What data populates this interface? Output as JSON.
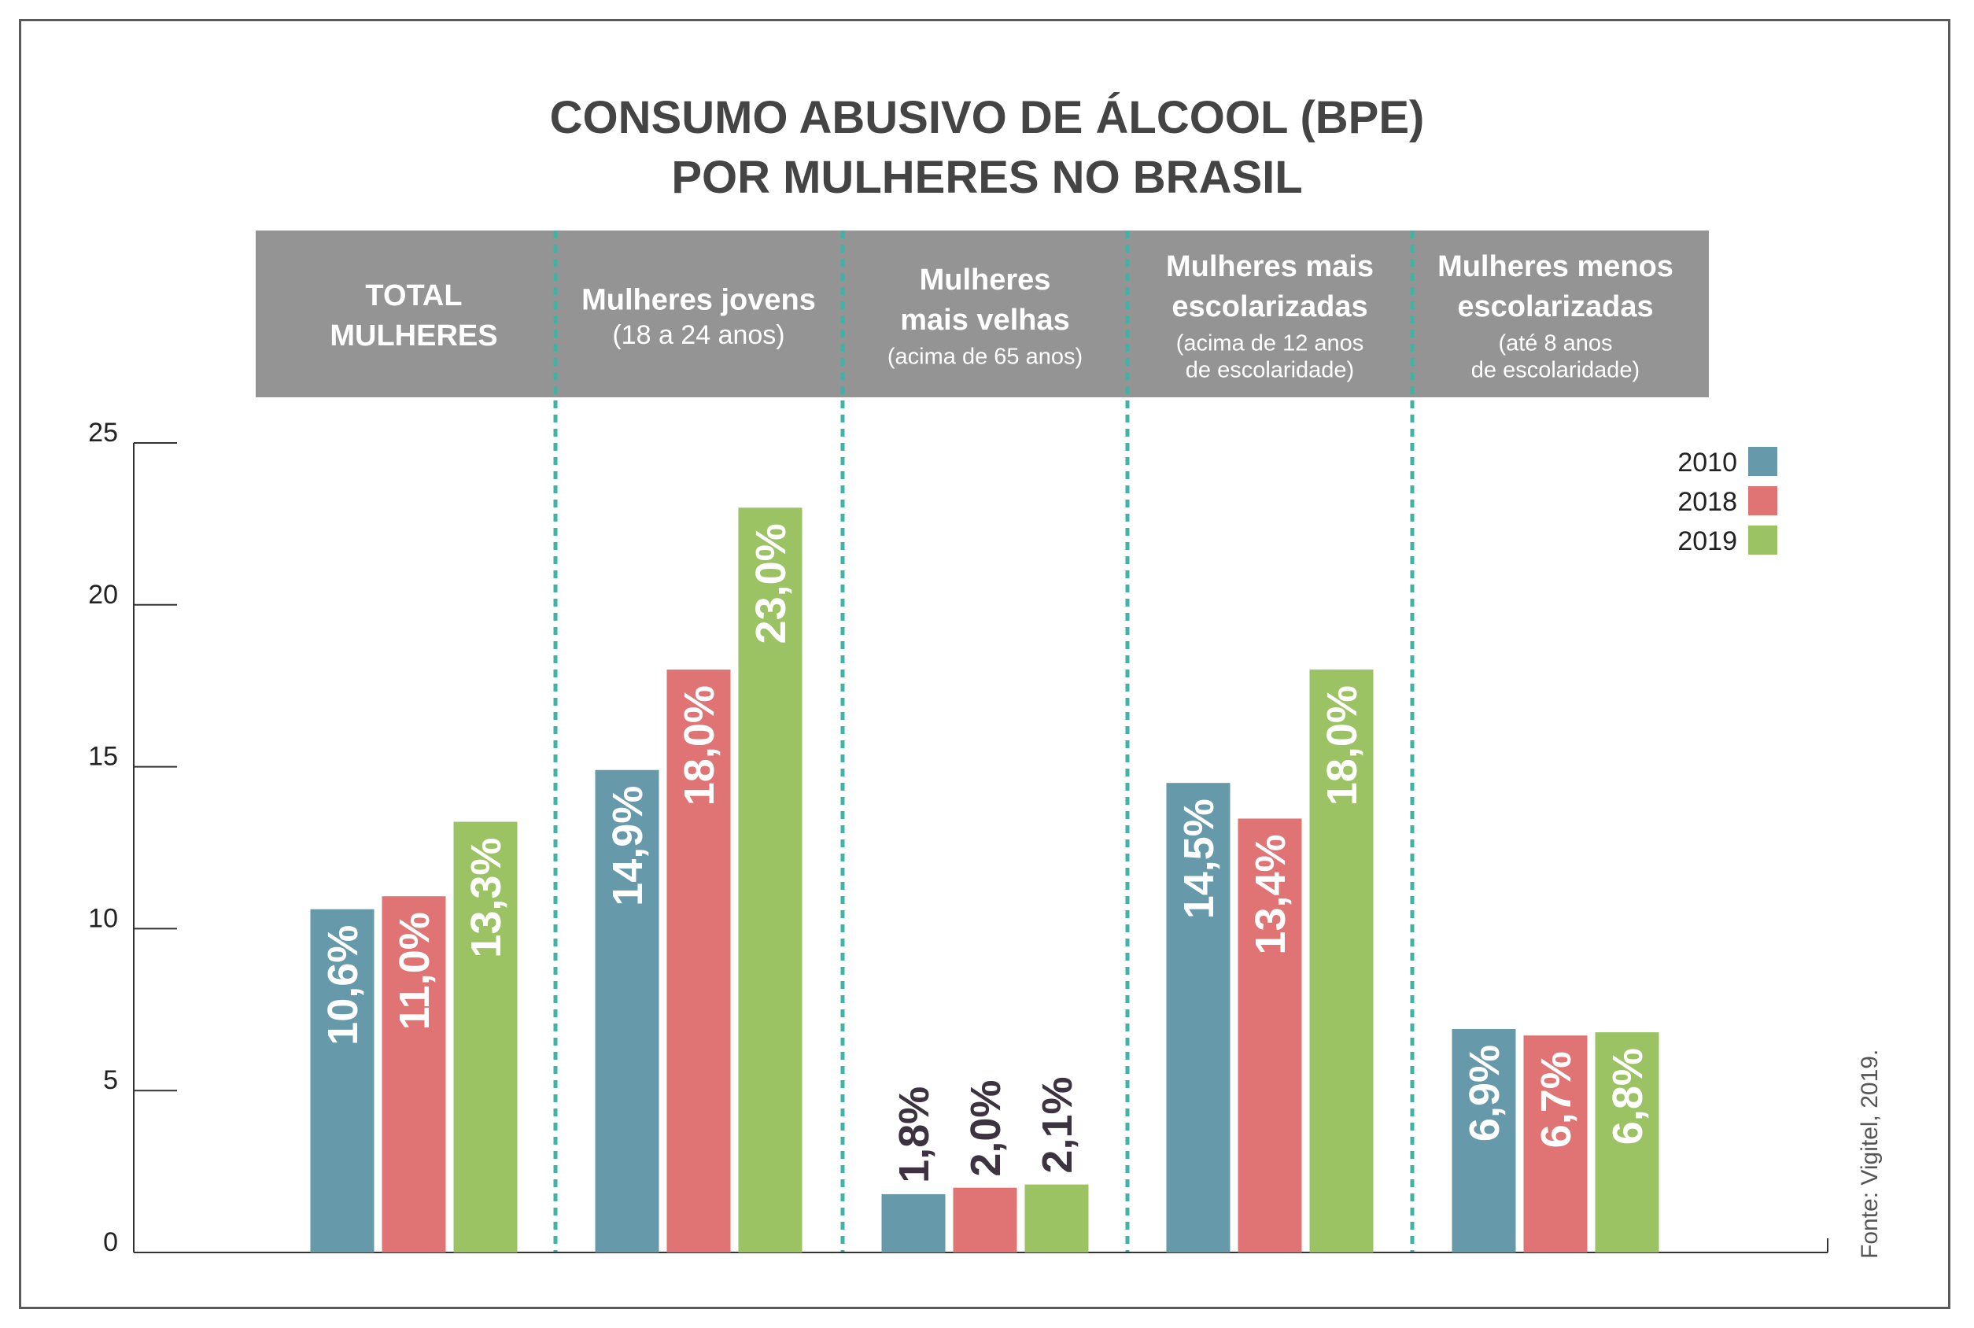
{
  "title_line1": "CONSUMO ABUSIVO DE ÁLCOOL (BPE)",
  "title_line2": "POR MULHERES NO BRASIL",
  "source": "Fonte: Vigitel, 2019.",
  "colors": {
    "header_bg": "#949494",
    "divider": "#3fb3a6",
    "axis": "#333333",
    "series_2010": "#6699aa",
    "series_2018": "#e07373",
    "series_2019": "#9bc263",
    "outside_label": "#3d3340"
  },
  "chart_data": {
    "type": "bar",
    "title": "CONSUMO ABUSIVO DE ÁLCOOL (BPE) POR MULHERES NO BRASIL",
    "categories": [
      {
        "lines": [
          "TOTAL",
          "MULHERES"
        ],
        "sub": []
      },
      {
        "lines": [
          "Mulheres jovens"
        ],
        "sub": [
          "(18 a 24 anos)"
        ]
      },
      {
        "lines": [
          "Mulheres",
          "mais velhas"
        ],
        "sub": [
          "(acima de 65 anos)"
        ]
      },
      {
        "lines": [
          "Mulheres mais",
          "escolarizadas"
        ],
        "sub": [
          "(acima de 12 anos",
          "de escolaridade)"
        ]
      },
      {
        "lines": [
          "Mulheres menos",
          "escolarizadas"
        ],
        "sub": [
          "(até 8 anos",
          "de escolaridade)"
        ]
      }
    ],
    "series": [
      {
        "name": "2010",
        "values": [
          10.6,
          14.9,
          1.8,
          14.5,
          6.9
        ],
        "labels": [
          "10,6%",
          "14,9%",
          "1,8%",
          "14,5%",
          "6,9%"
        ]
      },
      {
        "name": "2018",
        "values": [
          11.0,
          18.0,
          2.0,
          13.4,
          6.7
        ],
        "labels": [
          "11,0%",
          "18,0%",
          "2,0%",
          "13,4%",
          "6,7%"
        ]
      },
      {
        "name": "2019",
        "values": [
          13.3,
          23.0,
          2.1,
          18.0,
          6.8
        ],
        "labels": [
          "13,3%",
          "23,0%",
          "2,1%",
          "18,0%",
          "6,8%"
        ]
      }
    ],
    "yticks": [
      "0",
      "5",
      "10",
      "15",
      "20",
      "25"
    ],
    "ylim": [
      0,
      25
    ],
    "legend_position": "top-right",
    "grid": false
  }
}
